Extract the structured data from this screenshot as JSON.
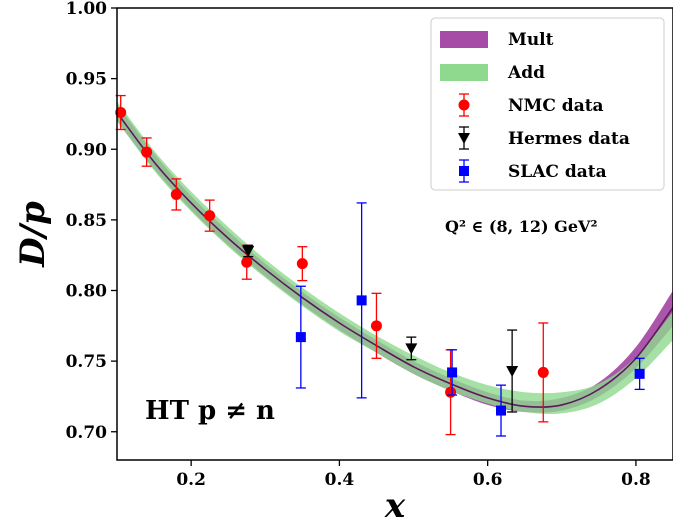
{
  "chart_data": {
    "type": "line",
    "xlabel": "x",
    "ylabel": "D/p",
    "xlim": [
      0.1,
      0.85
    ],
    "ylim": [
      0.68,
      1.0
    ],
    "xticks": [
      0.2,
      0.4,
      0.6,
      0.8
    ],
    "xtick_labels": [
      "0.2",
      "0.4",
      "0.6",
      "0.8"
    ],
    "yticks": [
      0.7,
      0.75,
      0.8,
      0.85,
      0.9,
      0.95,
      1.0
    ],
    "ytick_labels": [
      "0.70",
      "0.75",
      "0.80",
      "0.85",
      "0.90",
      "0.95",
      "1.00"
    ],
    "grid": false,
    "legend_position": "top-right",
    "annotations": {
      "q2_range": "Q² ∈ (8, 12) GeV²",
      "ht_label": "HT p ≠ n"
    },
    "bands": [
      {
        "name": "Mult",
        "color": "#a64ca6",
        "x": [
          0.1,
          0.15,
          0.2,
          0.25,
          0.3,
          0.35,
          0.4,
          0.45,
          0.5,
          0.55,
          0.6,
          0.65,
          0.7,
          0.75,
          0.8,
          0.85
        ],
        "lower": [
          0.92,
          0.886,
          0.857,
          0.832,
          0.81,
          0.79,
          0.772,
          0.756,
          0.741,
          0.729,
          0.719,
          0.714,
          0.715,
          0.725,
          0.745,
          0.775
        ],
        "upper": [
          0.932,
          0.897,
          0.867,
          0.842,
          0.819,
          0.799,
          0.781,
          0.765,
          0.75,
          0.738,
          0.728,
          0.722,
          0.724,
          0.735,
          0.76,
          0.8
        ],
        "center": [
          0.926,
          0.891,
          0.862,
          0.837,
          0.815,
          0.795,
          0.777,
          0.761,
          0.746,
          0.734,
          0.724,
          0.718,
          0.719,
          0.73,
          0.752,
          0.788
        ]
      },
      {
        "name": "Add",
        "color": "#8fd98f",
        "x": [
          0.1,
          0.15,
          0.2,
          0.25,
          0.3,
          0.35,
          0.4,
          0.45,
          0.5,
          0.55,
          0.6,
          0.65,
          0.7,
          0.75,
          0.8,
          0.85
        ],
        "lower": [
          0.92,
          0.885,
          0.856,
          0.831,
          0.809,
          0.789,
          0.771,
          0.756,
          0.741,
          0.729,
          0.72,
          0.714,
          0.713,
          0.72,
          0.738,
          0.765
        ],
        "upper": [
          0.934,
          0.899,
          0.87,
          0.845,
          0.822,
          0.802,
          0.784,
          0.768,
          0.754,
          0.742,
          0.733,
          0.728,
          0.728,
          0.734,
          0.753,
          0.785
        ]
      }
    ],
    "series": [
      {
        "name": "NMC data",
        "marker": "circle",
        "color": "#ff0000",
        "points": [
          {
            "x": 0.105,
            "y": 0.926,
            "err": 0.012
          },
          {
            "x": 0.14,
            "y": 0.898,
            "err": 0.01
          },
          {
            "x": 0.18,
            "y": 0.868,
            "err": 0.011
          },
          {
            "x": 0.225,
            "y": 0.853,
            "err": 0.011
          },
          {
            "x": 0.275,
            "y": 0.82,
            "err": 0.012
          },
          {
            "x": 0.35,
            "y": 0.819,
            "err": 0.012
          },
          {
            "x": 0.45,
            "y": 0.775,
            "err": 0.023
          },
          {
            "x": 0.55,
            "y": 0.728,
            "err": 0.03
          },
          {
            "x": 0.675,
            "y": 0.742,
            "err": 0.035
          }
        ]
      },
      {
        "name": "Hermes data",
        "marker": "triangle-down",
        "color": "#000000",
        "points": [
          {
            "x": 0.277,
            "y": 0.828,
            "err": 0.004
          },
          {
            "x": 0.497,
            "y": 0.759,
            "err": 0.008
          },
          {
            "x": 0.633,
            "y": 0.743,
            "err": 0.029
          }
        ]
      },
      {
        "name": "SLAC data",
        "marker": "square",
        "color": "#0000ff",
        "points": [
          {
            "x": 0.348,
            "y": 0.767,
            "err": 0.036
          },
          {
            "x": 0.43,
            "y": 0.793,
            "err": 0.069
          },
          {
            "x": 0.552,
            "y": 0.742,
            "err": 0.016
          },
          {
            "x": 0.618,
            "y": 0.715,
            "err": 0.018
          },
          {
            "x": 0.805,
            "y": 0.741,
            "err": 0.011
          }
        ]
      }
    ]
  }
}
